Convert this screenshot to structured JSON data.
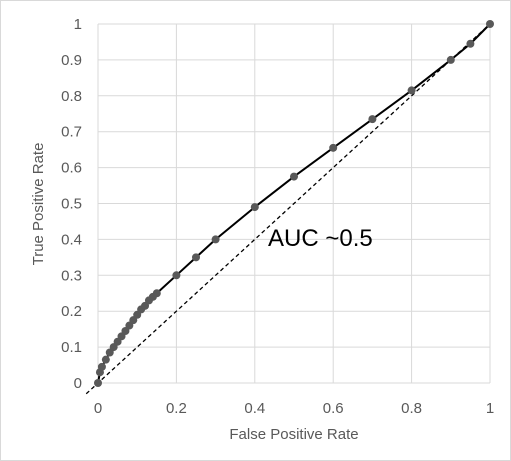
{
  "chart_data": {
    "type": "line",
    "title": "",
    "xlabel": "False Positive Rate",
    "ylabel": "True Positive Rate",
    "xlim": [
      0,
      1
    ],
    "ylim": [
      0,
      1
    ],
    "x_ticks": [
      "0",
      "0.2",
      "0.4",
      "0.6",
      "0.8",
      "1"
    ],
    "y_ticks": [
      "0",
      "0.1",
      "0.2",
      "0.3",
      "0.4",
      "0.5",
      "0.6",
      "0.7",
      "0.8",
      "0.9",
      "1"
    ],
    "grid": true,
    "legend": "none",
    "annotation": "AUC ~0.5",
    "series": [
      {
        "style": "solid-with-markers",
        "color": "#000000",
        "marker_color": "#595959",
        "points": [
          [
            0,
            0
          ],
          [
            0.005,
            0.03
          ],
          [
            0.01,
            0.045
          ],
          [
            0.02,
            0.065
          ],
          [
            0.03,
            0.085
          ],
          [
            0.04,
            0.1
          ],
          [
            0.05,
            0.115
          ],
          [
            0.06,
            0.13
          ],
          [
            0.07,
            0.145
          ],
          [
            0.08,
            0.16
          ],
          [
            0.09,
            0.175
          ],
          [
            0.1,
            0.19
          ],
          [
            0.11,
            0.205
          ],
          [
            0.12,
            0.215
          ],
          [
            0.13,
            0.23
          ],
          [
            0.14,
            0.24
          ],
          [
            0.15,
            0.25
          ],
          [
            0.2,
            0.3
          ],
          [
            0.25,
            0.35
          ],
          [
            0.3,
            0.4
          ],
          [
            0.4,
            0.49
          ],
          [
            0.5,
            0.575
          ],
          [
            0.6,
            0.655
          ],
          [
            0.7,
            0.735
          ],
          [
            0.8,
            0.815
          ],
          [
            0.9,
            0.9
          ],
          [
            0.95,
            0.945
          ],
          [
            1,
            1
          ]
        ]
      },
      {
        "style": "dashed",
        "color": "#000000",
        "points": [
          [
            -0.03,
            -0.03
          ],
          [
            1,
            1
          ]
        ]
      }
    ]
  }
}
